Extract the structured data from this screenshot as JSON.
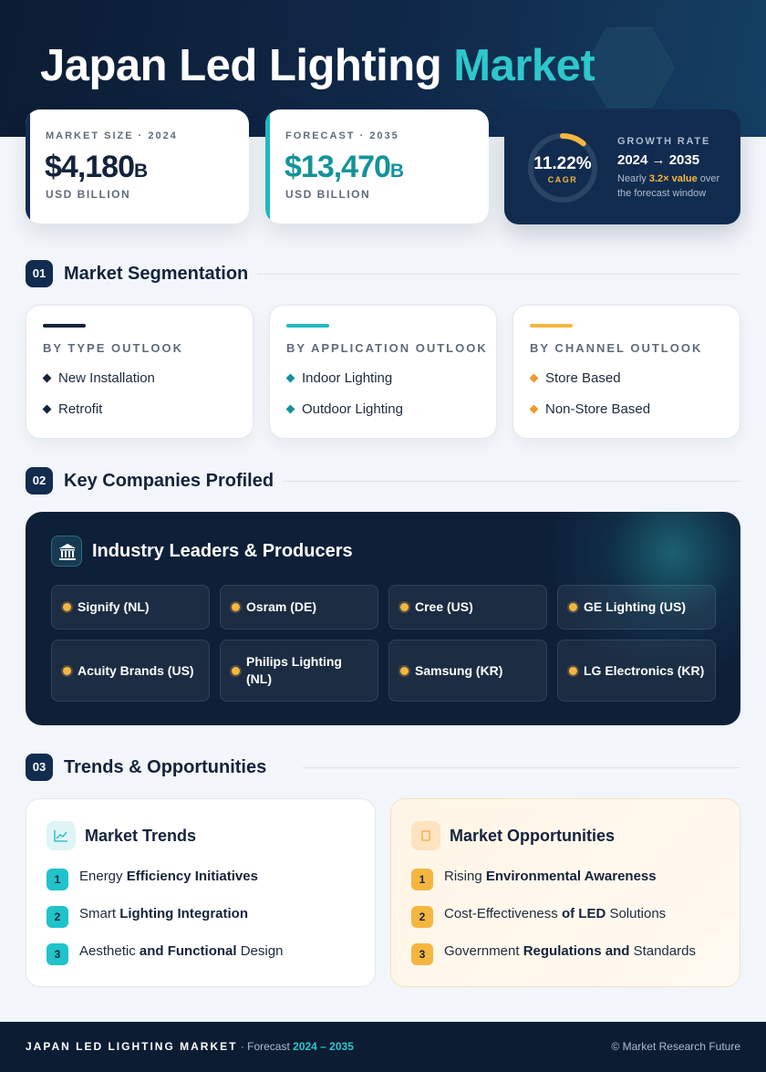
{
  "header": {
    "title_main": "Japan Led Lighting",
    "title_accent": "Market"
  },
  "stats": {
    "market_size": {
      "label": "MARKET SIZE · 2024",
      "value": "$4,180",
      "suffix": "B",
      "unit": "USD BILLION"
    },
    "forecast": {
      "label": "FORECAST · 2035",
      "value": "$13,470",
      "suffix": "B",
      "unit": "USD BILLION"
    },
    "growth": {
      "cagr_value": "11.22%",
      "cagr_label": "CAGR",
      "cagr_fraction": 0.1122,
      "label": "GROWTH RATE",
      "range": "2024 → 2035",
      "note_before": "Nearly ",
      "note_highlight": "3.2× value",
      "note_after": " over the forecast window"
    }
  },
  "sections": {
    "segmentation": {
      "num": "01",
      "title": "Market Segmentation"
    },
    "companies": {
      "num": "02",
      "title": "Key Companies Profiled"
    },
    "trends": {
      "num": "03",
      "title": "Trends & Opportunities"
    }
  },
  "segments": [
    {
      "title": "BY TYPE OUTLOOK",
      "color": "#14233b",
      "items": [
        "New Installation",
        "Retrofit"
      ]
    },
    {
      "title": "BY APPLICATION OUTLOOK",
      "color": "#1fb8bf",
      "items": [
        "Indoor Lighting",
        "Outdoor Lighting"
      ]
    },
    {
      "title": "BY CHANNEL OUTLOOK",
      "color": "#f5b640",
      "items": [
        "Store Based",
        "Non-Store Based"
      ]
    }
  ],
  "companies": {
    "panel_title": "Industry Leaders & Producers",
    "icon": "bank-building-icon",
    "list": [
      "Signify (NL)",
      "Osram (DE)",
      "Cree (US)",
      "GE Lighting (US)",
      "Acuity Brands (US)",
      "Philips Lighting (NL)",
      "Samsung (KR)",
      "LG Electronics (KR)"
    ]
  },
  "trends": {
    "title": "Market Trends",
    "icon": "line-chart-icon",
    "items": [
      {
        "num": "1",
        "plain1": "Energy ",
        "bold1": "Efficiency Initiatives",
        "plain2": ""
      },
      {
        "num": "2",
        "plain1": "Smart ",
        "bold1": "Lighting Integration",
        "plain2": ""
      },
      {
        "num": "3",
        "plain1": "Aesthetic ",
        "bold1": "and Functional",
        "plain2": " Design"
      }
    ]
  },
  "opportunities": {
    "title": "Market Opportunities",
    "icon": "square-icon",
    "items": [
      {
        "num": "1",
        "plain1": "Rising ",
        "bold1": "Environmental Awareness",
        "plain2": ""
      },
      {
        "num": "2",
        "plain1": "Cost-Effectiveness ",
        "bold1": "of LED",
        "plain2": " Solutions"
      },
      {
        "num": "3",
        "plain1": "Government ",
        "bold1": "Regulations and",
        "plain2": " Standards"
      }
    ]
  },
  "footer": {
    "brand": "JAPAN LED LIGHTING MARKET",
    "sep": " · Forecast ",
    "years": "2024 – 2035",
    "copyright": "© Market Research Future"
  },
  "colors": {
    "navy": "#122c4f",
    "teal": "#1fb8bf",
    "amber": "#f5b640",
    "diamond_type": "#14233b",
    "diamond_application": "#14939a",
    "diamond_channel": "#ef9a2f"
  }
}
